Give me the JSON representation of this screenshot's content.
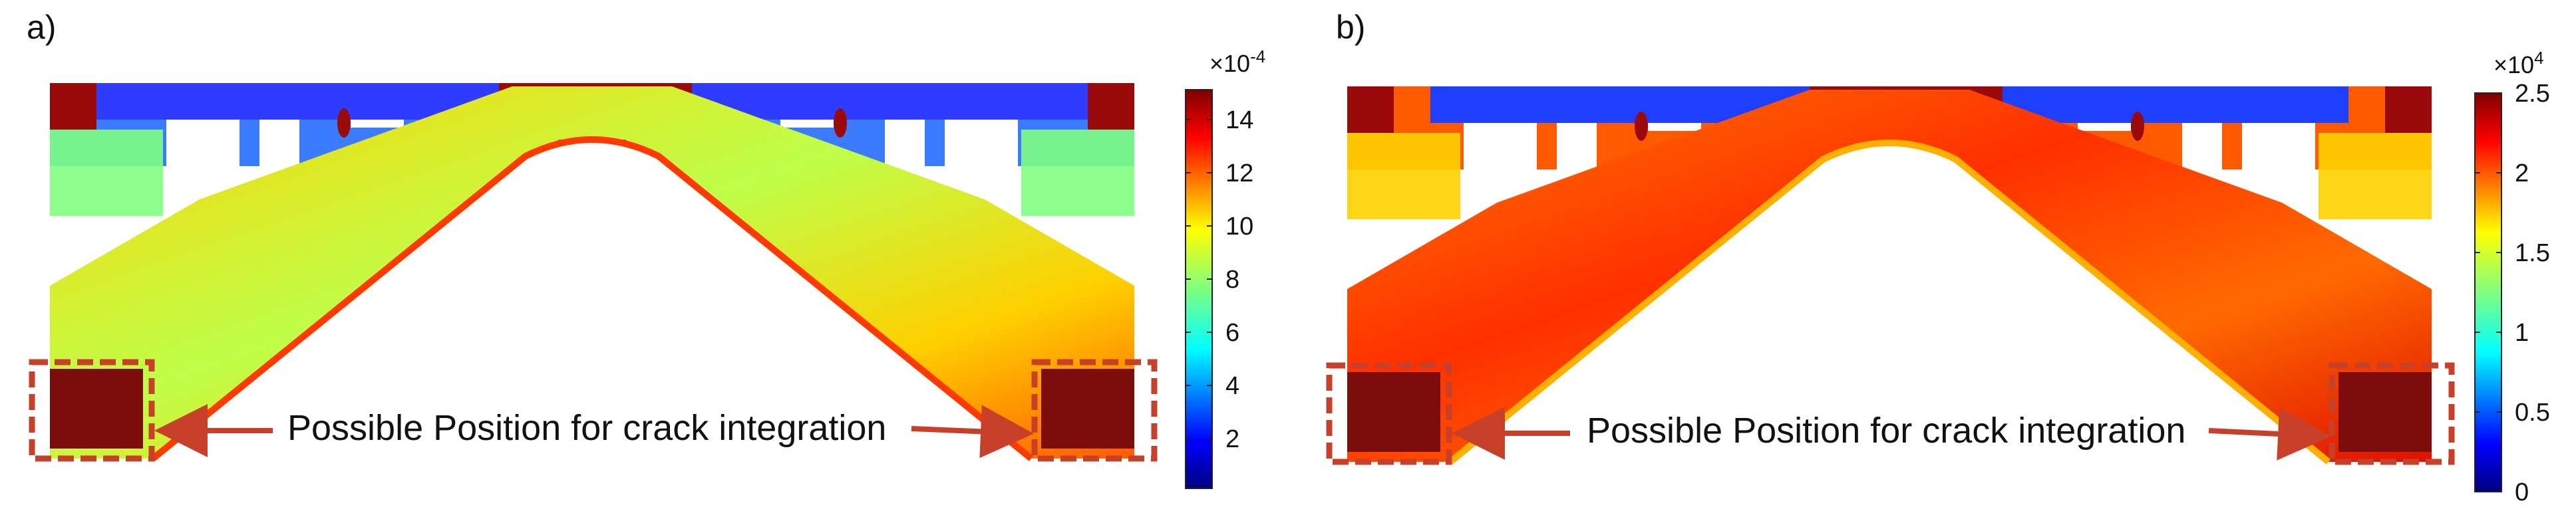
{
  "panels": [
    {
      "id": "a",
      "label": "a)",
      "annotation": "Possible Position for crack integration",
      "colorbar": {
        "multiplier": "×10",
        "exponent": "-4",
        "ticks": [
          "14",
          "12",
          "10",
          "8",
          "6",
          "4",
          "2"
        ]
      }
    },
    {
      "id": "b",
      "label": "b)",
      "annotation": "Possible Position for crack integration",
      "colorbar": {
        "multiplier": "×10",
        "exponent": "4",
        "ticks": [
          "2.5",
          "2",
          "1.5",
          "1",
          "0.5",
          "0"
        ]
      }
    }
  ],
  "colors": {
    "annotation_red": "#c8402a",
    "box_dark_red": "#7d0d0d",
    "jet": [
      "#00007f",
      "#0000ff",
      "#007fff",
      "#00ffff",
      "#7fff7f",
      "#ffff00",
      "#ff7f00",
      "#ff0000",
      "#7f0000"
    ]
  }
}
